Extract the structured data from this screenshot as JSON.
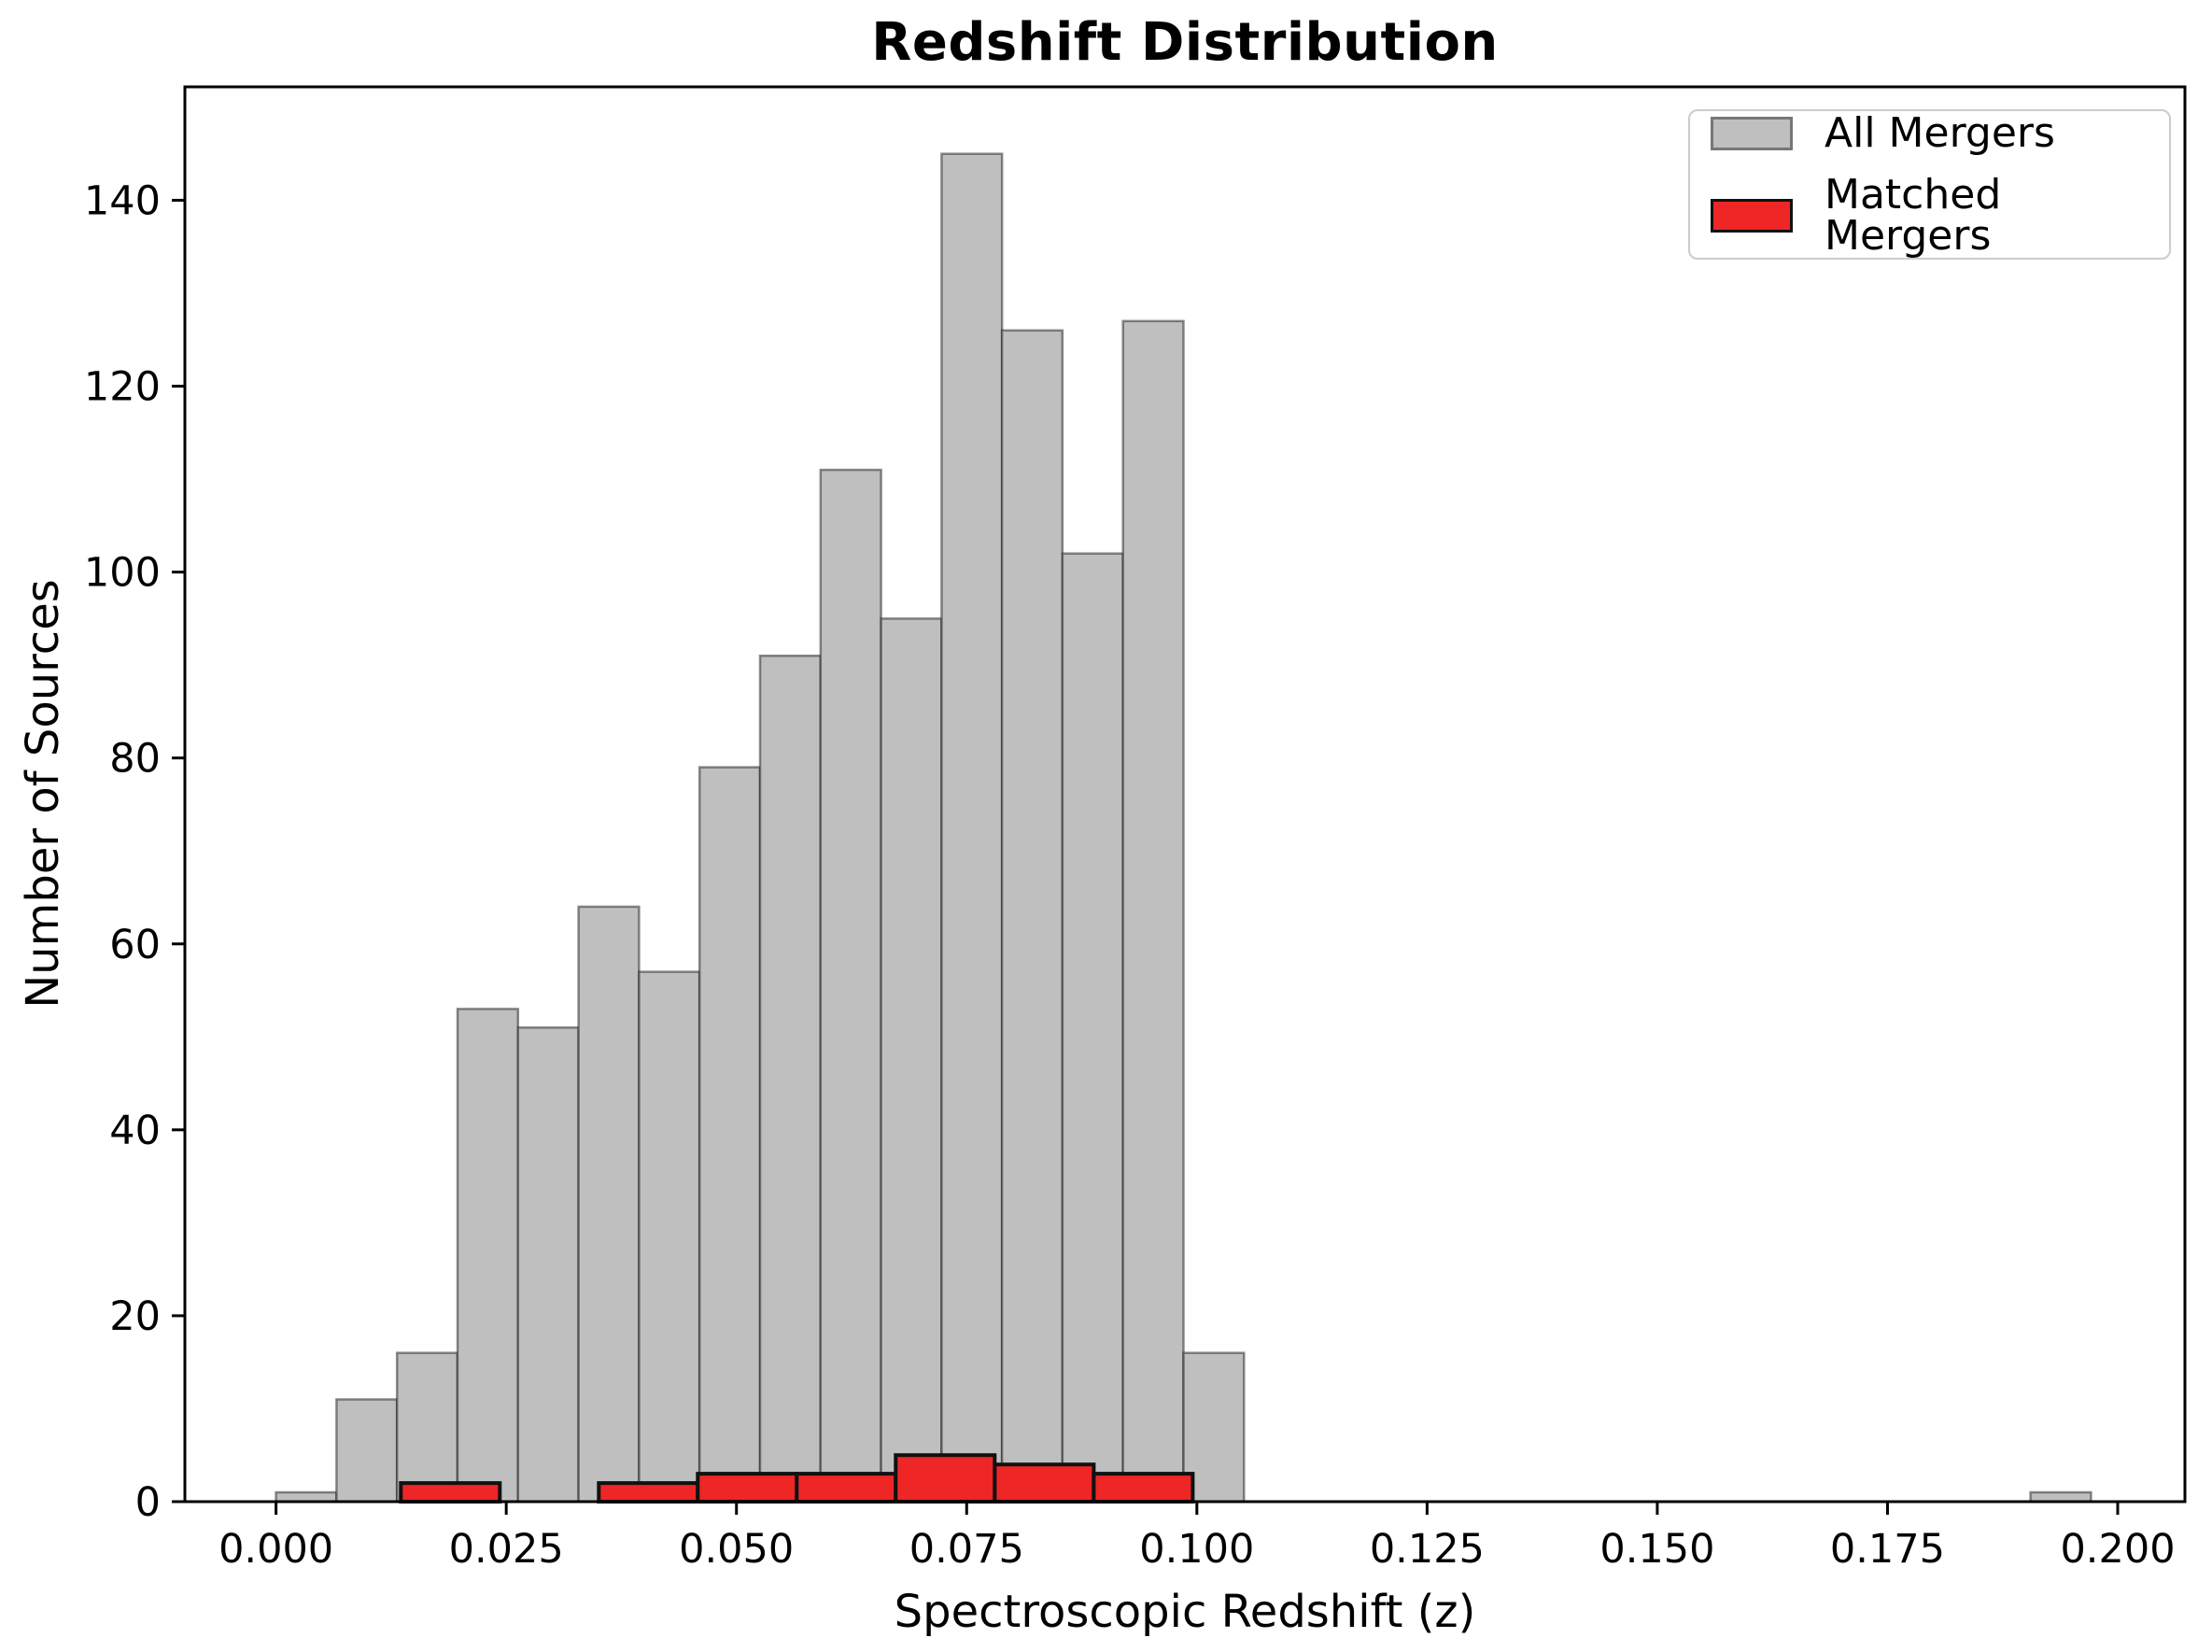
{
  "figure": {
    "title": "Redshift Distribution",
    "xlabel": "Spectroscopic Redshift (z)",
    "ylabel": "Number of Sources"
  },
  "legend": {
    "items": [
      {
        "label": "All Mergers",
        "fill": "#bfbfbf",
        "edge": "#777777"
      },
      {
        "label": "Matched Mergers",
        "fill": "#ee2626",
        "edge": "#111111"
      }
    ]
  },
  "chart_data": {
    "type": "bar",
    "subtype": "histogram",
    "title": "Redshift Distribution",
    "xlabel": "Spectroscopic Redshift (z)",
    "ylabel": "Number of Sources",
    "xlim": [
      -0.0099,
      0.2073
    ],
    "ylim": [
      0,
      152.2
    ],
    "grid": false,
    "legend_position": "upper right",
    "x_ticks": [
      {
        "value": 0.0,
        "label": "0.000"
      },
      {
        "value": 0.025,
        "label": "0.025"
      },
      {
        "value": 0.05,
        "label": "0.050"
      },
      {
        "value": 0.075,
        "label": "0.075"
      },
      {
        "value": 0.1,
        "label": "0.100"
      },
      {
        "value": 0.125,
        "label": "0.125"
      },
      {
        "value": 0.15,
        "label": "0.150"
      },
      {
        "value": 0.175,
        "label": "0.175"
      },
      {
        "value": 0.2,
        "label": "0.200"
      }
    ],
    "y_ticks": [
      {
        "value": 0,
        "label": "0"
      },
      {
        "value": 20,
        "label": "20"
      },
      {
        "value": 40,
        "label": "40"
      },
      {
        "value": 60,
        "label": "60"
      },
      {
        "value": 80,
        "label": "80"
      },
      {
        "value": 100,
        "label": "100"
      },
      {
        "value": 120,
        "label": "120"
      },
      {
        "value": 140,
        "label": "140"
      }
    ],
    "series": [
      {
        "name": "All Mergers",
        "bin_start": 0.0,
        "bin_width": 0.00657,
        "counts": [
          1,
          11,
          16,
          53,
          51,
          64,
          57,
          79,
          91,
          111,
          95,
          145,
          126,
          102,
          127,
          16,
          0,
          0,
          0,
          0,
          0,
          0,
          0,
          0,
          0,
          0,
          0,
          0,
          0,
          1
        ],
        "fill": "#bfbfbf",
        "edge": "rgba(30,30,30,0.5)",
        "edge_width": 2.5
      },
      {
        "name": "Matched Mergers",
        "bin_start": 0.01355,
        "bin_width": 0.01075,
        "counts": [
          2,
          0,
          2,
          3,
          3,
          5,
          4,
          3
        ],
        "fill": "#ee2626",
        "edge": "#111111",
        "edge_width": 4
      }
    ]
  }
}
